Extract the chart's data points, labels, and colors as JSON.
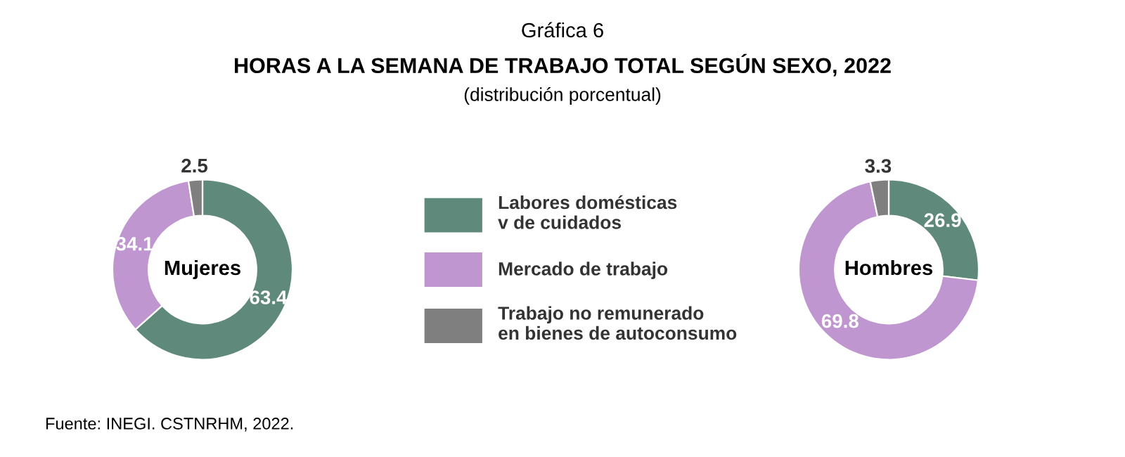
{
  "chart_data": [
    {
      "type": "donut",
      "title": "Mujeres",
      "annotations": [
        "Gráfica 6",
        "HORAS A LA SEMANA DE TRABAJO TOTAL SEGÚN SEXO, 2022",
        "(distribución porcentual)",
        "Fuente: INEGI. CSTNRHM, 2022."
      ],
      "categories": [
        "Labores domésticas\nv de cuidados",
        "Mercado de trabajo",
        "Trabajo no remunerado\nen bienes de autoconsumo"
      ],
      "values": [
        63.4,
        34.1,
        2.5
      ],
      "colors": [
        "#5f8a7b",
        "#bf96cf",
        "#7f7f7f"
      ],
      "data_labels": true,
      "legend": "right"
    },
    {
      "type": "donut",
      "title": "Hombres",
      "categories": [
        null,
        null,
        null
      ],
      "values": [
        26.9,
        69.8,
        3.3
      ],
      "colors": [
        "#5f8a7b",
        "#bf96cf",
        "#7f7f7f"
      ],
      "data_labels": true
    }
  ]
}
